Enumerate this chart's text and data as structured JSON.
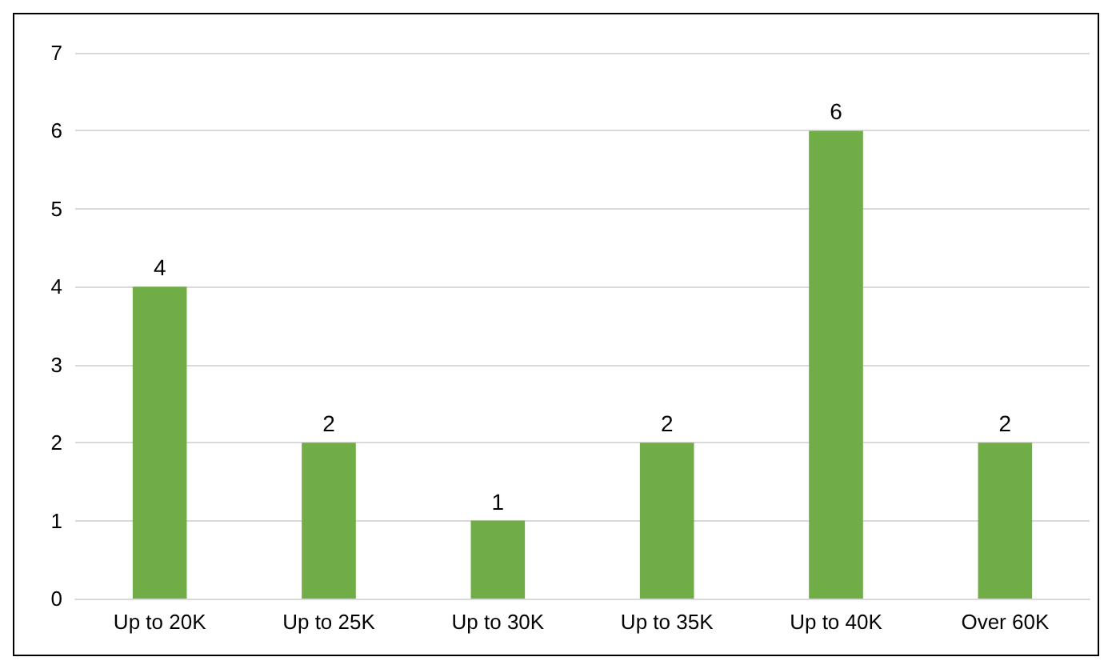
{
  "chart_data": {
    "type": "bar",
    "categories": [
      "Up to 20K",
      "Up to 25K",
      "Up to 30K",
      "Up to 35K",
      "Up to 40K",
      "Over 60K"
    ],
    "values": [
      4,
      2,
      1,
      2,
      6,
      2
    ],
    "color": "#70ad47",
    "ylim": [
      0,
      7
    ],
    "yticks": [
      0,
      1,
      2,
      3,
      4,
      5,
      6,
      7
    ],
    "grid": "y",
    "data_labels": true
  }
}
